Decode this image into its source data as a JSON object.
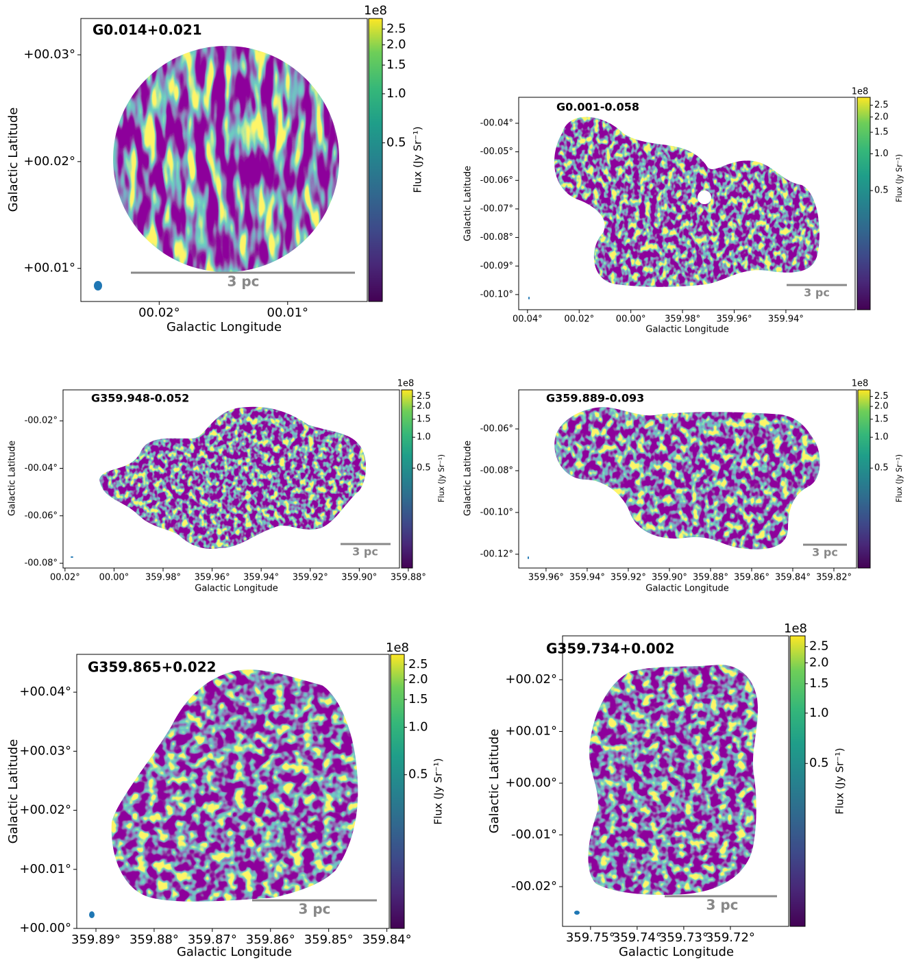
{
  "chart_data": [
    {
      "type": "image",
      "title": "G0.014+0.021",
      "xlabel": "Galactic Longitude",
      "ylabel": "Galactic Latitude",
      "scalebar": "3 pc",
      "xlim": [
        0.0261,
        0.0038
      ],
      "ylim": [
        0.0069,
        0.0334
      ],
      "xticks": [
        {
          "value": 0.02,
          "label": "00.02°"
        },
        {
          "value": 0.01,
          "label": "00.01°"
        }
      ],
      "yticks": [
        {
          "value": 0.03,
          "label": "+00.03°"
        },
        {
          "value": 0.02,
          "label": "+00.02°"
        },
        {
          "value": 0.01,
          "label": "+00.01°"
        }
      ],
      "colorbar": {
        "label": "Flux (Jy Sr⁻¹)",
        "offset_label": "1e8",
        "scale": "log",
        "clim": [
          0.053,
          2.9
        ],
        "ticks": [
          2.5,
          {
            "value": 2,
            "label": "2.0"
          },
          1.5,
          {
            "value": 1,
            "label": "1.0"
          },
          0.5
        ]
      }
    },
    {
      "type": "image",
      "title": "G0.001-0.058",
      "xlabel": "Galactic Longitude",
      "ylabel": "Galactic Latitude",
      "scalebar": "3 pc",
      "xlim": [
        0.0434,
        359.9132
      ],
      "ylim": [
        -0.1053,
        -0.0309
      ],
      "xticks": [
        {
          "value": 0.04,
          "label": "00.04°"
        },
        {
          "value": 0.02,
          "label": "00.02°"
        },
        {
          "value": 0,
          "label": "00.00°"
        },
        {
          "value": 359.98,
          "label": "359.98°"
        },
        {
          "value": 359.96,
          "label": "359.96°"
        },
        {
          "value": 359.94,
          "label": "359.94°"
        }
      ],
      "yticks": [
        {
          "value": -0.04,
          "label": "-00.04°"
        },
        {
          "value": -0.05,
          "label": "-00.05°"
        },
        {
          "value": -0.06,
          "label": "-00.06°"
        },
        {
          "value": -0.07,
          "label": "-00.07°"
        },
        {
          "value": -0.08,
          "label": "-00.08°"
        },
        {
          "value": -0.09,
          "label": "-00.09°"
        },
        {
          "value": -0.1,
          "label": "-00.10°"
        }
      ],
      "colorbar": {
        "label": "Flux (Jy Sr⁻¹)",
        "offset_label": "1e8",
        "scale": "log",
        "clim": [
          0.053,
          2.9
        ],
        "ticks": [
          2.5,
          {
            "value": 2,
            "label": "2.0"
          },
          1.5,
          {
            "value": 1,
            "label": "1.0"
          },
          0.5
        ]
      }
    },
    {
      "type": "image",
      "title": "G359.948-0.052",
      "xlabel": "Galactic Longitude",
      "ylabel": "Galactic Latitude",
      "scalebar": "3 pc",
      "xlim": [
        0.0208,
        359.8836
      ],
      "ylim": [
        -0.082,
        -0.00696
      ],
      "xticks": [
        {
          "value": 0.02,
          "label": "00.02°"
        },
        {
          "value": 0,
          "label": "00.00°"
        },
        {
          "value": 359.98,
          "label": "359.98°"
        },
        {
          "value": 359.96,
          "label": "359.96°"
        },
        {
          "value": 359.94,
          "label": "359.94°"
        },
        {
          "value": 359.92,
          "label": "359.92°"
        },
        {
          "value": 359.9,
          "label": "359.90°"
        },
        {
          "value": 359.88,
          "label": "359.88°"
        }
      ],
      "yticks": [
        {
          "value": -0.02,
          "label": "-00.02°"
        },
        {
          "value": -0.04,
          "label": "-00.04°"
        },
        {
          "value": -0.06,
          "label": "-00.06°"
        },
        {
          "value": -0.08,
          "label": "-00.08°"
        }
      ],
      "colorbar": {
        "label": "Flux (Jy Sr⁻¹)",
        "offset_label": "1e8",
        "scale": "log",
        "clim": [
          0.053,
          2.9
        ],
        "ticks": [
          2.5,
          {
            "value": 2,
            "label": "2.0"
          },
          1.5,
          {
            "value": 1,
            "label": "1.0"
          },
          0.5
        ]
      }
    },
    {
      "type": "image",
      "title": "G359.889-0.093",
      "xlabel": "Galactic Longitude",
      "ylabel": "Galactic Latitude",
      "scalebar": "3 pc",
      "xlim": [
        359.9733,
        359.809
      ],
      "ylim": [
        -0.1266,
        -0.0413
      ],
      "xticks": [
        {
          "value": 359.96,
          "label": "359.96°"
        },
        {
          "value": 359.94,
          "label": "359.94°"
        },
        {
          "value": 359.92,
          "label": "359.92°"
        },
        {
          "value": 359.9,
          "label": "359.90°"
        },
        {
          "value": 359.88,
          "label": "359.88°"
        },
        {
          "value": 359.86,
          "label": "359.86°"
        },
        {
          "value": 359.84,
          "label": "359.84°"
        },
        {
          "value": 359.82,
          "label": "359.82°"
        }
      ],
      "yticks": [
        {
          "value": -0.06,
          "label": "-00.06°"
        },
        {
          "value": -0.08,
          "label": "-00.08°"
        },
        {
          "value": -0.1,
          "label": "-00.10°"
        },
        {
          "value": -0.12,
          "label": "-00.12°"
        }
      ],
      "colorbar": {
        "label": "Flux (Jy Sr⁻¹)",
        "offset_label": "1e8",
        "scale": "log",
        "clim": [
          0.053,
          2.9
        ],
        "ticks": [
          2.5,
          {
            "value": 2,
            "label": "2.0"
          },
          1.5,
          {
            "value": 1,
            "label": "1.0"
          },
          0.5
        ]
      }
    },
    {
      "type": "image",
      "title": "G359.865+0.022",
      "xlabel": "Galactic Longitude",
      "ylabel": "Galactic Latitude",
      "scalebar": "3 pc",
      "xlim": [
        359.8933,
        359.8396
      ],
      "ylim": [
        0,
        0.0464
      ],
      "xticks": [
        {
          "value": 359.89,
          "label": "359.89°"
        },
        {
          "value": 359.88,
          "label": "359.88°"
        },
        {
          "value": 359.87,
          "label": "359.87°"
        },
        {
          "value": 359.86,
          "label": "359.86°"
        },
        {
          "value": 359.85,
          "label": "359.85°"
        },
        {
          "value": 359.84,
          "label": "359.84°"
        }
      ],
      "yticks": [
        {
          "value": 0.04,
          "label": "+00.04°"
        },
        {
          "value": 0.03,
          "label": "+00.03°"
        },
        {
          "value": 0.02,
          "label": "+00.02°"
        },
        {
          "value": 0.01,
          "label": "+00.01°"
        },
        {
          "value": 0,
          "label": "+00.00°"
        }
      ],
      "colorbar": {
        "label": "Flux (Jy Sr⁻¹)",
        "offset_label": "1e8",
        "scale": "log",
        "clim": [
          0.053,
          2.9
        ],
        "ticks": [
          2.5,
          {
            "value": 2,
            "label": "2.0"
          },
          1.5,
          {
            "value": 1,
            "label": "1.0"
          },
          0.5
        ]
      }
    },
    {
      "type": "image",
      "title": "G359.734+0.002",
      "xlabel": "Galactic Longitude",
      "ylabel": "Galactic Latitude",
      "scalebar": "3 pc",
      "xlim": [
        359.756,
        359.7075
      ],
      "ylim": [
        -0.02768,
        0.02848
      ],
      "xticks": [
        {
          "value": 359.75,
          "label": "359.75°"
        },
        {
          "value": 359.74,
          "label": "359.74°"
        },
        {
          "value": 359.73,
          "label": "359.73°"
        },
        {
          "value": 359.72,
          "label": "359.72°"
        }
      ],
      "yticks": [
        {
          "value": 0.02,
          "label": "+00.02°"
        },
        {
          "value": 0.01,
          "label": "+00.01°"
        },
        {
          "value": 0,
          "label": "+00.00°"
        },
        {
          "value": -0.01,
          "label": "-00.01°"
        },
        {
          "value": -0.02,
          "label": "-00.02°"
        }
      ],
      "colorbar": {
        "label": "Flux (Jy Sr⁻¹)",
        "offset_label": "1e8",
        "scale": "log",
        "clim": [
          0.053,
          2.9
        ],
        "ticks": [
          2.5,
          {
            "value": 2,
            "label": "2.0"
          },
          1.5,
          {
            "value": 1,
            "label": "1.0"
          },
          0.5
        ]
      }
    }
  ]
}
